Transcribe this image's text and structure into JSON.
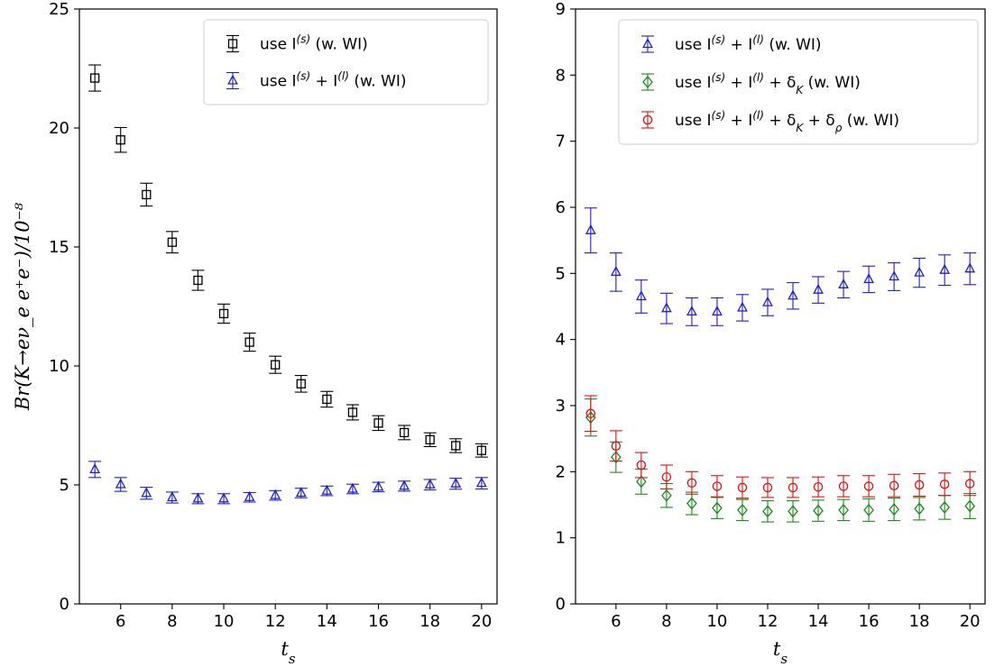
{
  "chart_data": [
    {
      "type": "scatter",
      "xlabel": "t_s",
      "ylabel": "Br(K→eν_e e⁺e⁻)/10⁻⁸",
      "xlim": [
        4.4,
        20.6
      ],
      "ylim": [
        0,
        25
      ],
      "xticks": [
        6,
        8,
        10,
        12,
        14,
        16,
        18,
        20
      ],
      "yticks": [
        0,
        5,
        10,
        15,
        20,
        25
      ],
      "legend_position": "upper-right",
      "series": [
        {
          "name": "use I^{(s)} (w. WI)",
          "marker": "square",
          "color": "#000000",
          "x": [
            5,
            6,
            7,
            8,
            9,
            10,
            11,
            12,
            13,
            14,
            15,
            16,
            17,
            18,
            19,
            20
          ],
          "y": [
            22.1,
            19.5,
            17.2,
            15.2,
            13.6,
            12.2,
            11.0,
            10.05,
            9.25,
            8.6,
            8.05,
            7.6,
            7.2,
            6.9,
            6.65,
            6.45
          ],
          "err": [
            0.55,
            0.52,
            0.48,
            0.45,
            0.42,
            0.4,
            0.38,
            0.36,
            0.35,
            0.33,
            0.32,
            0.31,
            0.3,
            0.29,
            0.29,
            0.28
          ]
        },
        {
          "name": "use I^{(s)} + I^{(l)} (w. WI)",
          "marker": "triangle",
          "color": "#1f1fd1",
          "x": [
            5,
            6,
            7,
            8,
            9,
            10,
            11,
            12,
            13,
            14,
            15,
            16,
            17,
            18,
            19,
            20
          ],
          "y": [
            5.65,
            5.02,
            4.65,
            4.47,
            4.42,
            4.42,
            4.48,
            4.56,
            4.66,
            4.75,
            4.83,
            4.91,
            4.95,
            5.01,
            5.05,
            5.07
          ],
          "err": [
            0.34,
            0.29,
            0.25,
            0.23,
            0.21,
            0.21,
            0.2,
            0.2,
            0.2,
            0.2,
            0.2,
            0.2,
            0.21,
            0.22,
            0.23,
            0.24
          ]
        }
      ]
    },
    {
      "type": "scatter",
      "xlabel": "t_s",
      "ylabel": "",
      "xlim": [
        4.4,
        20.6
      ],
      "ylim": [
        0,
        9
      ],
      "xticks": [
        6,
        8,
        10,
        12,
        14,
        16,
        18,
        20
      ],
      "yticks": [
        0,
        1,
        2,
        3,
        4,
        5,
        6,
        7,
        8,
        9
      ],
      "legend_position": "upper-right",
      "series": [
        {
          "name": "use I^{(s)} + I^{(l)} (w. WI)",
          "marker": "triangle",
          "color": "#1f1fd1",
          "x": [
            5,
            6,
            7,
            8,
            9,
            10,
            11,
            12,
            13,
            14,
            15,
            16,
            17,
            18,
            19,
            20
          ],
          "y": [
            5.65,
            5.02,
            4.65,
            4.47,
            4.42,
            4.42,
            4.48,
            4.56,
            4.66,
            4.75,
            4.83,
            4.91,
            4.95,
            5.01,
            5.05,
            5.07
          ],
          "err": [
            0.34,
            0.29,
            0.25,
            0.23,
            0.21,
            0.21,
            0.2,
            0.2,
            0.2,
            0.2,
            0.2,
            0.2,
            0.21,
            0.22,
            0.23,
            0.24
          ]
        },
        {
          "name": "use I^{(s)} + I^{(l)} + δ_K (w. WI)",
          "marker": "diamond",
          "color": "#1a8a1a",
          "x": [
            5,
            6,
            7,
            8,
            9,
            10,
            11,
            12,
            13,
            14,
            15,
            16,
            17,
            18,
            19,
            20
          ],
          "y": [
            2.82,
            2.22,
            1.85,
            1.64,
            1.52,
            1.45,
            1.42,
            1.4,
            1.4,
            1.41,
            1.42,
            1.42,
            1.43,
            1.44,
            1.46,
            1.48
          ],
          "err": [
            0.28,
            0.23,
            0.19,
            0.18,
            0.17,
            0.16,
            0.16,
            0.16,
            0.16,
            0.16,
            0.16,
            0.17,
            0.17,
            0.17,
            0.18,
            0.19
          ]
        },
        {
          "name": "use I^{(s)} + I^{(l)} + δ_K + δ_ρ (w. WI)",
          "marker": "circle",
          "color": "#e01010",
          "x": [
            5,
            6,
            7,
            8,
            9,
            10,
            11,
            12,
            13,
            14,
            15,
            16,
            17,
            18,
            19,
            20
          ],
          "y": [
            2.88,
            2.39,
            2.1,
            1.92,
            1.83,
            1.78,
            1.76,
            1.76,
            1.76,
            1.77,
            1.78,
            1.78,
            1.79,
            1.8,
            1.81,
            1.82
          ],
          "err": [
            0.27,
            0.23,
            0.19,
            0.18,
            0.17,
            0.16,
            0.16,
            0.15,
            0.15,
            0.15,
            0.16,
            0.16,
            0.17,
            0.17,
            0.17,
            0.18
          ]
        }
      ]
    }
  ]
}
